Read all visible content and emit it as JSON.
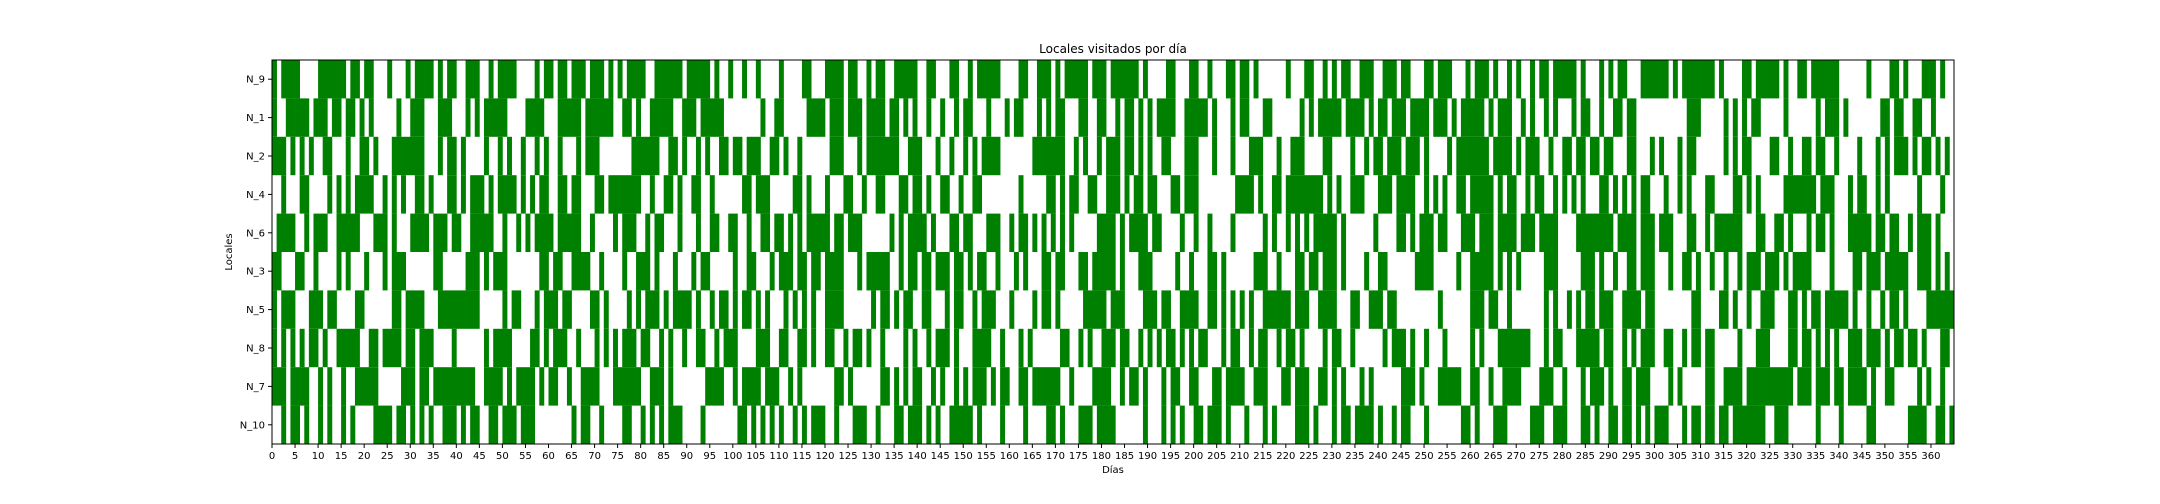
{
  "chart_data": {
    "type": "heatmap",
    "title": "Locales visitados por día",
    "xlabel": "Días",
    "ylabel": "Locales",
    "rows": [
      "N_9",
      "N_1",
      "N_2",
      "N_4",
      "N_6",
      "N_3",
      "N_5",
      "N_8",
      "N_7",
      "N_10"
    ],
    "days": 365,
    "xlim": [
      0,
      365
    ],
    "x_ticks": [
      0,
      5,
      10,
      15,
      20,
      25,
      30,
      35,
      40,
      45,
      50,
      55,
      60,
      65,
      70,
      75,
      80,
      85,
      90,
      95,
      100,
      105,
      110,
      115,
      120,
      125,
      130,
      135,
      140,
      145,
      150,
      155,
      160,
      165,
      170,
      175,
      180,
      185,
      190,
      195,
      200,
      205,
      210,
      215,
      220,
      225,
      230,
      235,
      240,
      245,
      250,
      255,
      260,
      265,
      270,
      275,
      280,
      285,
      290,
      295,
      300,
      305,
      310,
      315,
      320,
      325,
      330,
      335,
      340,
      345,
      350,
      355,
      360
    ],
    "fill_color": "#008000",
    "background_color": "#ffffff",
    "visit_fraction_by_row": [
      0.5,
      0.5,
      0.5,
      0.5,
      0.55,
      0.5,
      0.5,
      0.5,
      0.5,
      0.45
    ],
    "grid": false,
    "legend": "none"
  }
}
